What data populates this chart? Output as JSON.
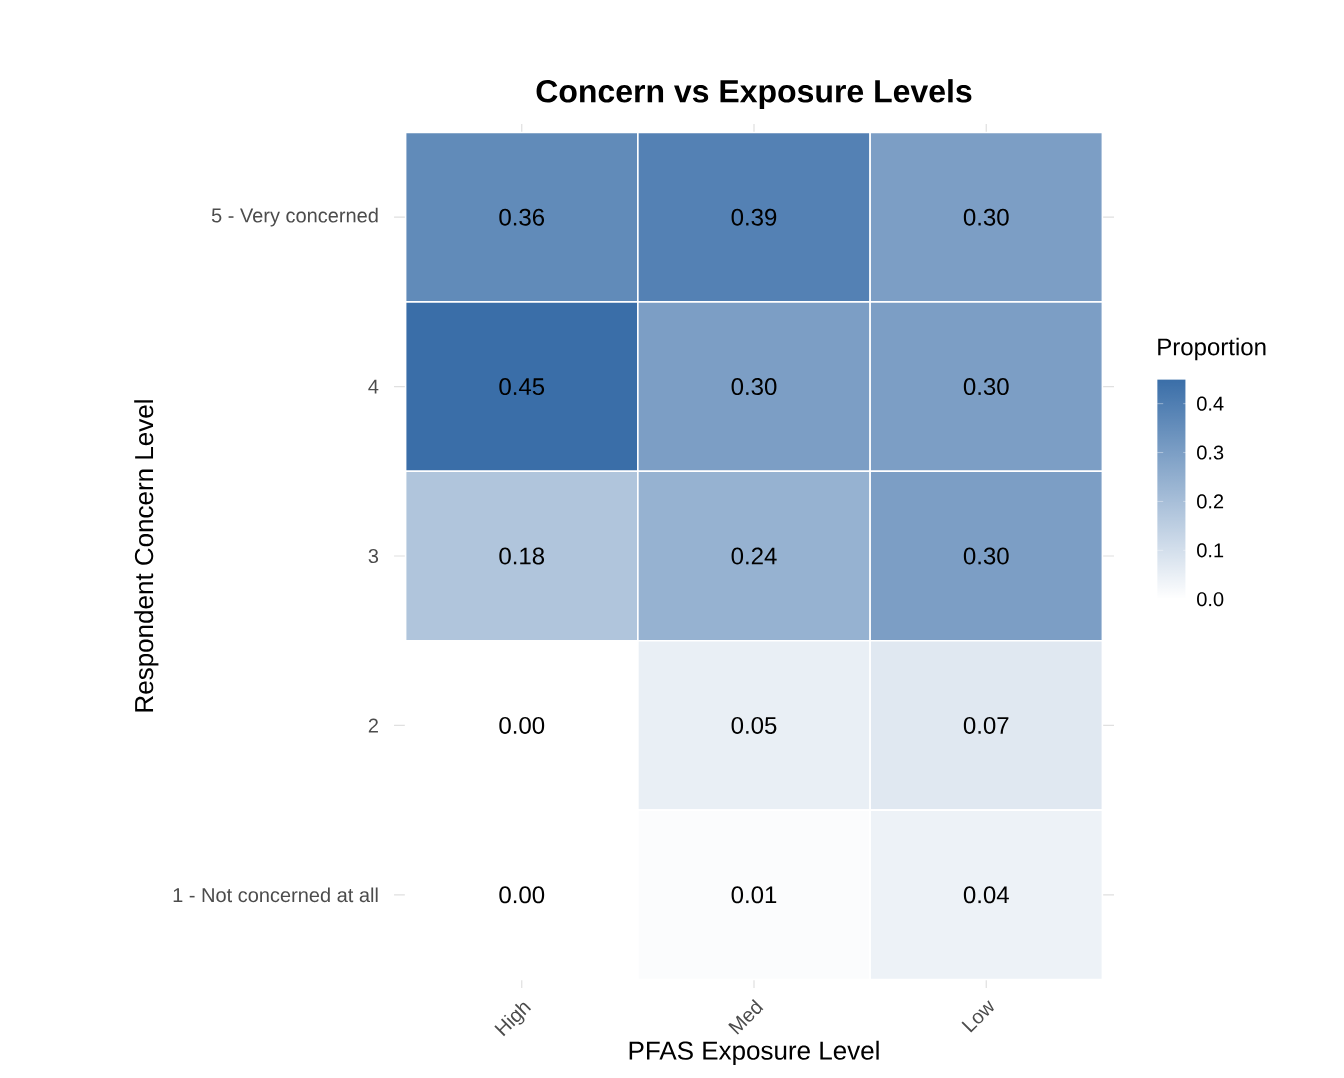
{
  "chart_data": {
    "type": "heatmap",
    "title": "Concern vs Exposure Levels",
    "xlabel": "PFAS Exposure Level",
    "ylabel": "Respondent Concern Level",
    "clabel": "Proportion",
    "categories": [
      "High",
      "Med",
      "Low"
    ],
    "y_categories": [
      "5 - Very concerned",
      "4",
      "3",
      "2",
      "1 - Not concerned at all"
    ],
    "cells": [
      [
        0.36,
        0.39,
        0.3
      ],
      [
        0.45,
        0.3,
        0.3
      ],
      [
        0.18,
        0.24,
        0.3
      ],
      [
        0.0,
        0.05,
        0.07
      ],
      [
        0.0,
        0.01,
        0.04
      ]
    ],
    "cell_labels": [
      [
        "0.36",
        "0.39",
        "0.30"
      ],
      [
        "0.45",
        "0.30",
        "0.30"
      ],
      [
        "0.18",
        "0.24",
        "0.30"
      ],
      [
        "0.00",
        "0.05",
        "0.07"
      ],
      [
        "0.00",
        "0.01",
        "0.04"
      ]
    ],
    "colors": [
      "#ffffff",
      "#3a6ea8"
    ],
    "clim": [
      0,
      0.45
    ],
    "cticks": [
      {
        "value": 0,
        "label": "0.0"
      },
      {
        "value": 0.1,
        "label": "0.1"
      },
      {
        "value": 0.2,
        "label": "0.2"
      },
      {
        "value": 0.3,
        "label": "0.3"
      },
      {
        "value": 0.4,
        "label": "0.4"
      }
    ],
    "grid": true
  }
}
